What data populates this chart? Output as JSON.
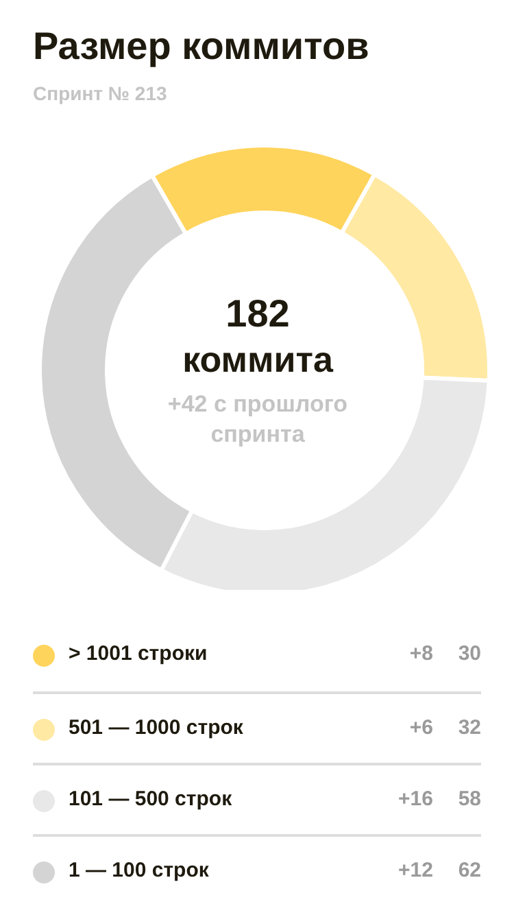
{
  "chart_data": {
    "type": "donut",
    "title": "Размер коммитов",
    "subtitle": "Спринт № 213",
    "categories": [
      "> 1001 строки",
      "501 — 1000 строк",
      "101 — 500 строк",
      "1 — 100 строк"
    ],
    "values": [
      30,
      32,
      58,
      62
    ],
    "colors": [
      "#ffd45c",
      "#ffe9a3",
      "#e8e8e8",
      "#d4d4d4"
    ],
    "annotations": [
      "182",
      "коммита",
      "+42 с прошлого спринта",
      "+8",
      "+6",
      "+16",
      "+12"
    ],
    "data_labels": true,
    "legend": "bottom"
  }
}
